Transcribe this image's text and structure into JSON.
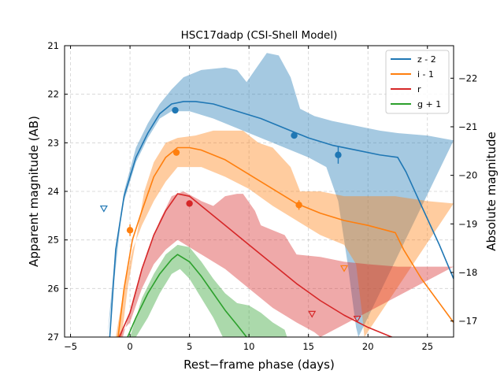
{
  "chart_data": {
    "type": "line",
    "title": "HSC17dadp (CSI-Shell Model)",
    "xlabel": "Rest−frame phase (days)",
    "ylabel": "Apparent magnitude (AB)",
    "ylabel_right": "Absolute magnitude",
    "xlim": [
      -5.5,
      27.2
    ],
    "ylim": [
      27,
      21
    ],
    "right_ylim": [
      -16.67,
      -22.67
    ],
    "xticks": [
      -5,
      0,
      5,
      10,
      15,
      20,
      25
    ],
    "yticks": [
      21,
      22,
      23,
      24,
      25,
      26,
      27
    ],
    "right_yticks": [
      -17,
      -18,
      -19,
      -20,
      -21,
      -22
    ],
    "grid": true,
    "legend_position": "top-right",
    "series": [
      {
        "name": "z - 2",
        "color": "#1f77b4",
        "model": [
          [
            -1.7,
            27
          ],
          [
            -1.2,
            25.2
          ],
          [
            -0.5,
            24.1
          ],
          [
            0.5,
            23.3
          ],
          [
            1.5,
            22.8
          ],
          [
            2.5,
            22.4
          ],
          [
            3.5,
            22.2
          ],
          [
            4.5,
            22.15
          ],
          [
            5.5,
            22.15
          ],
          [
            7,
            22.2
          ],
          [
            9,
            22.35
          ],
          [
            11,
            22.5
          ],
          [
            13,
            22.7
          ],
          [
            15,
            22.9
          ],
          [
            17,
            23.05
          ],
          [
            19,
            23.15
          ],
          [
            21,
            23.25
          ],
          [
            22.5,
            23.3
          ],
          [
            23.2,
            23.6
          ],
          [
            24.5,
            24.3
          ],
          [
            26,
            25.1
          ],
          [
            27.2,
            25.8
          ]
        ],
        "band_upper": [
          [
            -1.4,
            26
          ],
          [
            -0.5,
            24.0
          ],
          [
            0.5,
            23.1
          ],
          [
            1.5,
            22.6
          ],
          [
            2.5,
            22.2
          ],
          [
            3.5,
            21.9
          ],
          [
            4.5,
            21.65
          ],
          [
            6,
            21.5
          ],
          [
            8,
            21.45
          ],
          [
            9,
            21.5
          ],
          [
            9.8,
            21.75
          ],
          [
            10.5,
            21.5
          ],
          [
            11.5,
            21.15
          ],
          [
            12.5,
            21.2
          ],
          [
            13.5,
            21.65
          ],
          [
            14.3,
            22.3
          ],
          [
            15.5,
            22.45
          ],
          [
            17,
            22.55
          ],
          [
            19,
            22.65
          ],
          [
            21,
            22.75
          ],
          [
            22.5,
            22.8
          ],
          [
            25,
            22.85
          ],
          [
            27.2,
            22.95
          ]
        ],
        "band_lower": [
          [
            -1.9,
            27
          ],
          [
            -1.3,
            25.4
          ],
          [
            -0.5,
            24.2
          ],
          [
            0.5,
            23.4
          ],
          [
            1.5,
            22.9
          ],
          [
            2.5,
            22.5
          ],
          [
            3.5,
            22.35
          ],
          [
            5,
            22.35
          ],
          [
            7,
            22.5
          ],
          [
            10,
            22.8
          ],
          [
            13,
            23.1
          ],
          [
            15,
            23.3
          ],
          [
            16.5,
            23.5
          ],
          [
            17.5,
            24.2
          ],
          [
            18.3,
            25.5
          ],
          [
            19,
            26.8
          ],
          [
            19.2,
            27
          ]
        ],
        "points": [
          {
            "x": 3.8,
            "y": 22.33
          },
          {
            "x": 13.8,
            "y": 22.85
          },
          {
            "x": 17.5,
            "y": 23.25,
            "yerr": 0.18
          }
        ],
        "upper_limits": [
          {
            "x": -2.2,
            "y": 24.35
          }
        ]
      },
      {
        "name": "i - 1",
        "color": "#ff7f0e",
        "model": [
          [
            -1.0,
            27
          ],
          [
            -0.5,
            26.0
          ],
          [
            0.2,
            25.0
          ],
          [
            1,
            24.4
          ],
          [
            2,
            23.7
          ],
          [
            3,
            23.3
          ],
          [
            4,
            23.1
          ],
          [
            5,
            23.1
          ],
          [
            6,
            23.15
          ],
          [
            8,
            23.35
          ],
          [
            10,
            23.65
          ],
          [
            12,
            23.95
          ],
          [
            14,
            24.25
          ],
          [
            16,
            24.45
          ],
          [
            18,
            24.6
          ],
          [
            20,
            24.7
          ],
          [
            22.3,
            24.85
          ],
          [
            23,
            25.2
          ],
          [
            24.5,
            25.8
          ],
          [
            26,
            26.3
          ],
          [
            27.2,
            26.7
          ]
        ],
        "band_upper": [
          [
            -0.7,
            27
          ],
          [
            -0.2,
            26.0
          ],
          [
            0.5,
            25.0
          ],
          [
            1.2,
            24.0
          ],
          [
            2,
            23.4
          ],
          [
            3,
            23.0
          ],
          [
            4,
            22.9
          ],
          [
            5.5,
            22.85
          ],
          [
            7,
            22.75
          ],
          [
            9.5,
            22.75
          ],
          [
            10.8,
            23.0
          ],
          [
            12,
            23.1
          ],
          [
            13.5,
            23.5
          ],
          [
            14.3,
            24.0
          ],
          [
            16,
            24.0
          ],
          [
            18,
            24.1
          ],
          [
            20,
            24.1
          ],
          [
            22.3,
            24.1
          ],
          [
            25,
            24.2
          ],
          [
            27.2,
            24.25
          ]
        ],
        "band_lower": [
          [
            -1.2,
            27
          ],
          [
            -0.5,
            26.0
          ],
          [
            0.2,
            25.2
          ],
          [
            1,
            24.7
          ],
          [
            2,
            24.2
          ],
          [
            3,
            23.8
          ],
          [
            4,
            23.5
          ],
          [
            6,
            23.5
          ],
          [
            8,
            23.7
          ],
          [
            10,
            23.95
          ],
          [
            12,
            24.3
          ],
          [
            14,
            24.6
          ],
          [
            16,
            24.9
          ],
          [
            18,
            25.1
          ],
          [
            19,
            25.5
          ],
          [
            19.5,
            26.5
          ],
          [
            19.7,
            27
          ]
        ],
        "points": [
          {
            "x": 0.0,
            "y": 24.8,
            "yerr": 0.12
          },
          {
            "x": 3.9,
            "y": 23.2
          },
          {
            "x": 14.2,
            "y": 24.28,
            "yerr": 0.1
          }
        ],
        "upper_limits": [
          {
            "x": 18.0,
            "y": 25.58
          }
        ]
      },
      {
        "name": "r",
        "color": "#d62728",
        "model": [
          [
            -0.9,
            27
          ],
          [
            0,
            26.5
          ],
          [
            1,
            25.6
          ],
          [
            2,
            24.9
          ],
          [
            3,
            24.4
          ],
          [
            4,
            24.05
          ],
          [
            5,
            24.1
          ],
          [
            6,
            24.3
          ],
          [
            8,
            24.7
          ],
          [
            10,
            25.1
          ],
          [
            12,
            25.5
          ],
          [
            14,
            25.9
          ],
          [
            16,
            26.25
          ],
          [
            18,
            26.55
          ],
          [
            20,
            26.8
          ],
          [
            22,
            27.0
          ],
          [
            22.5,
            27.05
          ]
        ],
        "band_upper": [
          [
            -0.6,
            27
          ],
          [
            0.5,
            26.0
          ],
          [
            1.5,
            25.2
          ],
          [
            2.5,
            24.6
          ],
          [
            3.5,
            24.1
          ],
          [
            4.5,
            24.0
          ],
          [
            6,
            24.2
          ],
          [
            7,
            24.3
          ],
          [
            8,
            24.1
          ],
          [
            9,
            24.05
          ],
          [
            9.5,
            24.05
          ],
          [
            10.5,
            24.4
          ],
          [
            11,
            24.7
          ],
          [
            12,
            24.8
          ],
          [
            13,
            24.9
          ],
          [
            14,
            25.3
          ],
          [
            16,
            25.35
          ],
          [
            18,
            25.45
          ],
          [
            20,
            25.5
          ],
          [
            22.5,
            25.55
          ],
          [
            27.2,
            25.55
          ]
        ],
        "band_lower": [
          [
            -1.1,
            27
          ],
          [
            0,
            26.7
          ],
          [
            1,
            26.0
          ],
          [
            2,
            25.5
          ],
          [
            3,
            25.2
          ],
          [
            4,
            25.0
          ],
          [
            6,
            25.3
          ],
          [
            8,
            25.6
          ],
          [
            10,
            26.0
          ],
          [
            12,
            26.4
          ],
          [
            14,
            26.7
          ],
          [
            15.5,
            26.9
          ],
          [
            16,
            27
          ]
        ],
        "points": [
          {
            "x": 5.0,
            "y": 24.25
          }
        ],
        "upper_limits": [
          {
            "x": 15.3,
            "y": 26.52
          },
          {
            "x": 19.1,
            "y": 26.62
          }
        ]
      },
      {
        "name": "g + 1",
        "color": "#2ca02c",
        "model": [
          [
            -0.2,
            27
          ],
          [
            0.5,
            26.6
          ],
          [
            1.5,
            26.1
          ],
          [
            2.5,
            25.7
          ],
          [
            3.5,
            25.4
          ],
          [
            4,
            25.3
          ],
          [
            5,
            25.45
          ],
          [
            6,
            25.75
          ],
          [
            7,
            26.1
          ],
          [
            8,
            26.45
          ],
          [
            9,
            26.75
          ],
          [
            9.8,
            27
          ]
        ],
        "band_upper": [
          [
            0,
            27
          ],
          [
            1,
            26.2
          ],
          [
            2,
            25.7
          ],
          [
            3,
            25.3
          ],
          [
            4,
            25.1
          ],
          [
            5,
            25.15
          ],
          [
            6,
            25.45
          ],
          [
            7,
            25.8
          ],
          [
            8,
            26.1
          ],
          [
            9,
            26.3
          ],
          [
            10,
            26.35
          ],
          [
            11,
            26.5
          ],
          [
            12,
            26.7
          ],
          [
            13,
            26.85
          ],
          [
            13.2,
            27
          ]
        ],
        "band_lower": [
          [
            0.5,
            27
          ],
          [
            1.5,
            26.6
          ],
          [
            2.5,
            26.1
          ],
          [
            3.5,
            25.7
          ],
          [
            4.2,
            25.6
          ],
          [
            5,
            25.8
          ],
          [
            6,
            26.2
          ],
          [
            7,
            26.6
          ],
          [
            7.8,
            27
          ]
        ],
        "points": [],
        "upper_limits": []
      }
    ]
  }
}
